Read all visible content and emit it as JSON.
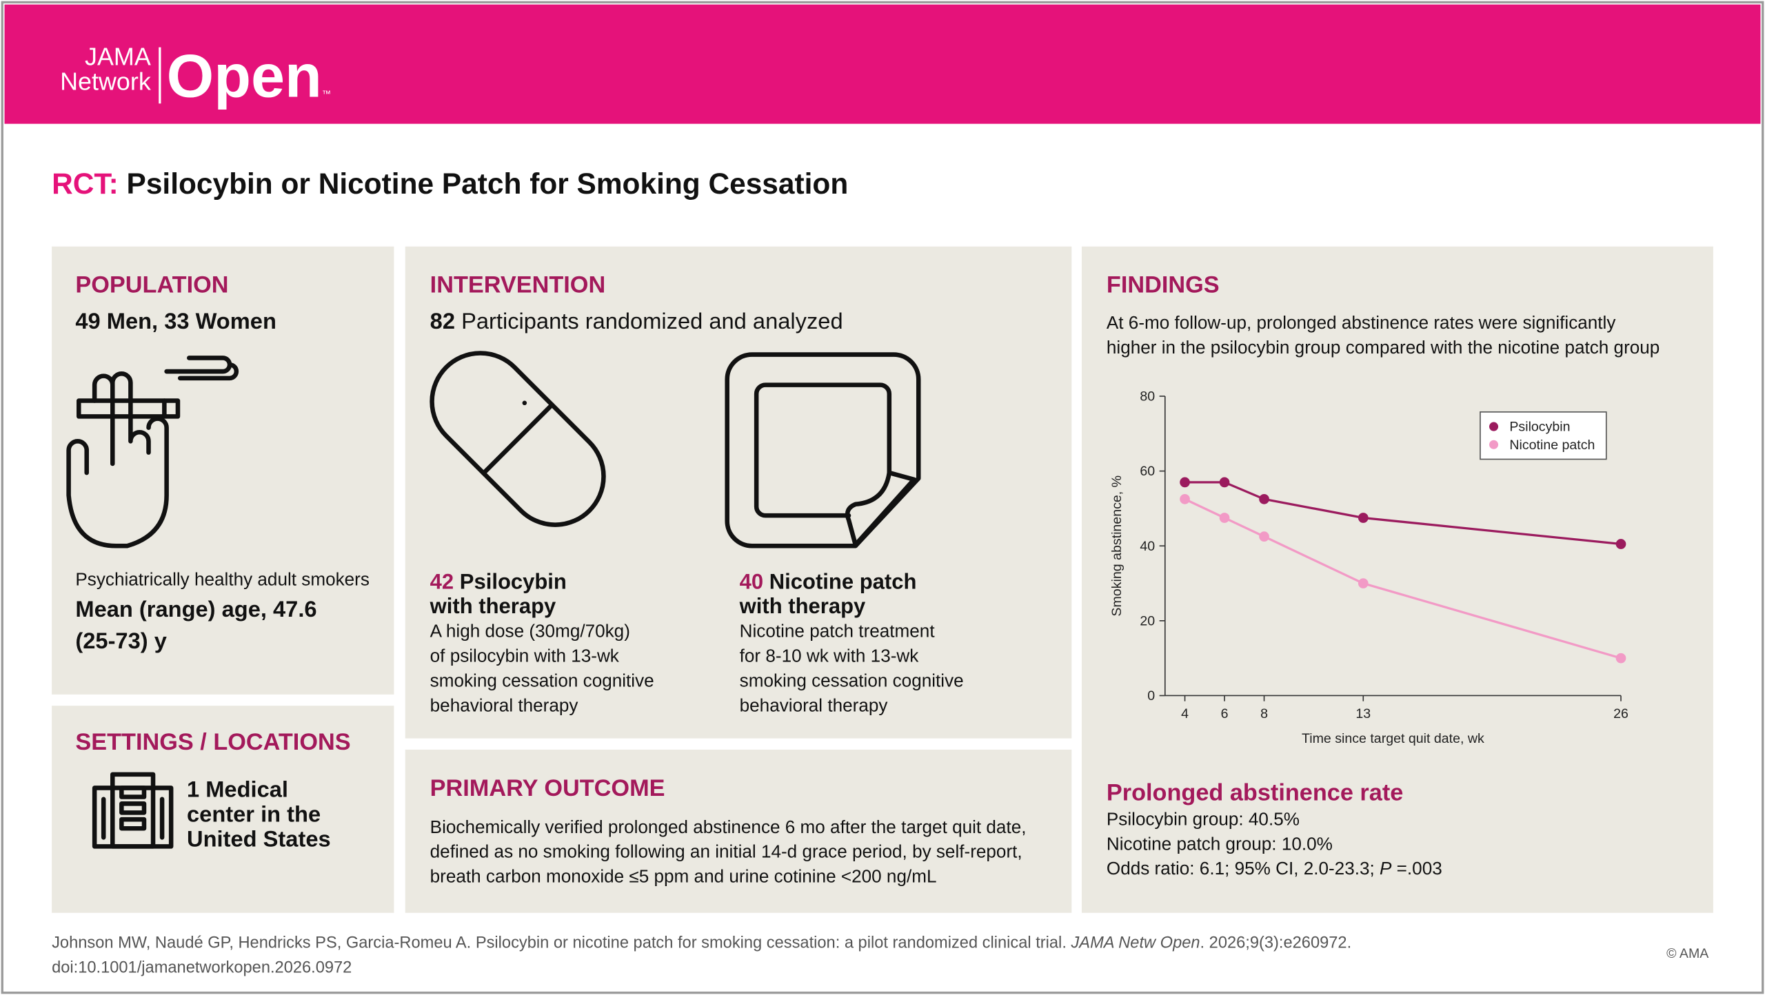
{
  "header": {
    "brand_line1": "JAMA",
    "brand_line2": "Network",
    "brand_main": "Open",
    "trademark": "™"
  },
  "title": {
    "prefix": "RCT:",
    "text": "Psilocybin or Nicotine Patch for Smoking Cessation"
  },
  "population": {
    "heading": "POPULATION",
    "summary": "49 Men, 33 Women",
    "description": "Psychiatrically healthy adult smokers",
    "age_lines": [
      "Mean (range) age, 47.6",
      "(25-73) y"
    ]
  },
  "settings": {
    "heading": "SETTINGS / LOCATIONS",
    "lines": [
      "1 Medical",
      "center in the",
      "United States"
    ]
  },
  "intervention": {
    "heading": "INTERVENTION",
    "summary_count": "82",
    "summary_text": "Participants randomized and analyzed",
    "arms": [
      {
        "count": "42",
        "name_lines": [
          "Psilocybin",
          "with therapy"
        ],
        "description_lines": [
          "A high dose (30mg/70kg)",
          "of psilocybin with 13-wk",
          "smoking cessation cognitive",
          "behavioral therapy"
        ]
      },
      {
        "count": "40",
        "name_lines": [
          "Nicotine patch",
          "with therapy"
        ],
        "description_lines": [
          "Nicotine patch treatment",
          "for 8-10 wk with 13-wk",
          "smoking cessation cognitive",
          "behavioral therapy"
        ]
      }
    ]
  },
  "primary_outcome": {
    "heading": "PRIMARY OUTCOME",
    "lines": [
      "Biochemically verified prolonged abstinence 6 mo after the target quit date,",
      "defined as no smoking following an initial 14-d grace period, by self-report,",
      "breath carbon monoxide ≤5 ppm and urine cotinine <200 ng/mL"
    ]
  },
  "findings": {
    "heading": "FINDINGS",
    "summary_lines": [
      "At 6-mo follow-up, prolonged abstinence rates were significantly",
      "higher in the psilocybin group compared with the nicotine patch group"
    ],
    "result_heading": "Prolonged abstinence rate",
    "results": [
      "Psilocybin group: 40.5%",
      "Nicotine patch group: 10.0%"
    ],
    "odds_ratio": {
      "before": "Odds ratio: 6.1; 95% CI, 2.0-23.3; ",
      "p_symbol": "P",
      "after": " =.003"
    }
  },
  "chart_data": {
    "type": "line",
    "x": [
      4,
      6,
      8,
      13,
      26
    ],
    "xlim": [
      3,
      26
    ],
    "xticks": [
      4,
      6,
      8,
      13,
      26
    ],
    "ylim": [
      0,
      80
    ],
    "yticks": [
      0,
      20,
      40,
      60,
      80
    ],
    "xlabel": "Time since target quit date, wk",
    "ylabel": "Smoking abstinence, %",
    "legend": "upper right",
    "series": [
      {
        "name": "Psilocybin",
        "color": "#9b1b5e",
        "values": [
          57,
          57,
          52.5,
          47.5,
          40.5
        ]
      },
      {
        "name": "Nicotine patch",
        "color": "#f29ac6",
        "values": [
          52.5,
          47.5,
          42.5,
          30,
          10
        ]
      }
    ]
  },
  "citation": {
    "line1_before": "Johnson MW, Naudé GP, Hendricks PS, Garcia-Romeu A. Psilocybin or nicotine patch for smoking cessation: a pilot randomized clinical trial. ",
    "journal": "JAMA Netw Open",
    "line1_after": ". 2026;9(3):e260972.",
    "line2": "doi:10.1001/jamanetworkopen.2026.0972"
  },
  "copyright": "© AMA"
}
